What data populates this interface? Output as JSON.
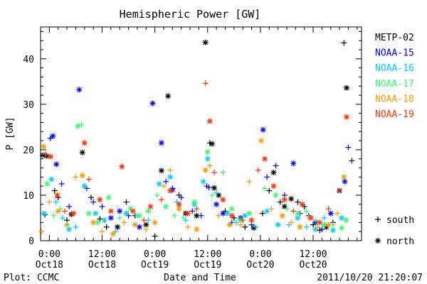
{
  "chart_data": {
    "type": "scatter",
    "title": "Hemispheric Power [GW]",
    "xlabel": "Date and Time",
    "ylabel": "P [GW]",
    "footer_left": "Plot: CCMC",
    "footer_right": "2011/10/20 21:20:07",
    "x_unit": "hours",
    "x_origin_label": "2011-10-18 00:00",
    "xlim": [
      -2.0,
      71.0
    ],
    "ylim": [
      0,
      47
    ],
    "y_ticks": [
      0,
      10,
      20,
      30,
      40
    ],
    "x_ticks": [
      {
        "x": 0,
        "label1": "0:00",
        "label2": "Oct18"
      },
      {
        "x": 12,
        "label1": "12:00",
        "label2": "Oct18"
      },
      {
        "x": 24,
        "label1": "0:00",
        "label2": "Oct19"
      },
      {
        "x": 36,
        "label1": "12:00",
        "label2": "Oct19"
      },
      {
        "x": 48,
        "label1": "0:00",
        "label2": "Oct20"
      },
      {
        "x": 60,
        "label1": "12:00",
        "label2": "Oct20"
      }
    ],
    "legend": {
      "position": "right",
      "markers": [
        {
          "symbol": "+",
          "label": "south"
        },
        {
          "symbol": "*",
          "label": "north"
        }
      ]
    },
    "series": [
      {
        "name": "METP-02",
        "color": "#000000",
        "points": [
          [
            -1.5,
            18.8,
            "n"
          ],
          [
            -0.6,
            18.6,
            "n"
          ],
          [
            1.2,
            11.0,
            "p"
          ],
          [
            2.0,
            9.5,
            "p"
          ],
          [
            4.0,
            4.5,
            "p"
          ],
          [
            5.0,
            5.8,
            "n"
          ],
          [
            7.5,
            19.4,
            "n"
          ],
          [
            9.5,
            9.5,
            "p"
          ],
          [
            11.5,
            4.8,
            "p"
          ],
          [
            13.0,
            3.0,
            "p"
          ],
          [
            15.5,
            3.0,
            "n"
          ],
          [
            17.5,
            8.5,
            "p"
          ],
          [
            19.5,
            5.5,
            "p"
          ],
          [
            22.0,
            3.5,
            "n"
          ],
          [
            24.0,
            1.0,
            "p"
          ],
          [
            25.5,
            15.4,
            "n"
          ],
          [
            27.0,
            31.8,
            "n"
          ],
          [
            28.0,
            11.5,
            "p"
          ],
          [
            29.5,
            10.0,
            "p"
          ],
          [
            31.0,
            6.0,
            "n"
          ],
          [
            33.5,
            5.5,
            "n"
          ],
          [
            35.5,
            43.6,
            "n"
          ],
          [
            36.5,
            21.5,
            "p"
          ],
          [
            37.0,
            21.3,
            "n"
          ],
          [
            37.5,
            11.6,
            "n"
          ],
          [
            38.5,
            10.0,
            "n"
          ],
          [
            40.0,
            6.5,
            "p"
          ],
          [
            42.0,
            5.0,
            "p"
          ],
          [
            44.5,
            3.0,
            "p"
          ],
          [
            46.5,
            2.8,
            "n"
          ],
          [
            48.5,
            6.0,
            "p"
          ],
          [
            50.0,
            11.0,
            "p"
          ],
          [
            51.0,
            15.0,
            "n"
          ],
          [
            52.5,
            8.5,
            "p"
          ],
          [
            53.5,
            7.5,
            "n"
          ],
          [
            55.0,
            9.2,
            "n"
          ],
          [
            56.5,
            8.5,
            "p"
          ],
          [
            58.0,
            7.5,
            "p"
          ],
          [
            60.0,
            3.5,
            "p"
          ],
          [
            61.5,
            2.3,
            "p"
          ],
          [
            63.0,
            3.0,
            "n"
          ],
          [
            64.5,
            4.0,
            "p"
          ],
          [
            66.0,
            11.0,
            "n"
          ],
          [
            67.0,
            43.5,
            "p"
          ],
          [
            67.6,
            33.6,
            "n"
          ]
        ]
      },
      {
        "name": "NOAA-15",
        "color": "#0000ff",
        "points": [
          [
            -1.0,
            5.7,
            "p"
          ],
          [
            0.2,
            22.5,
            "p"
          ],
          [
            0.8,
            23.0,
            "n"
          ],
          [
            1.6,
            16.8,
            "n"
          ],
          [
            2.8,
            12.5,
            "p"
          ],
          [
            4.5,
            7.5,
            "p"
          ],
          [
            6.8,
            33.2,
            "n"
          ],
          [
            8.5,
            11.5,
            "p"
          ],
          [
            10.0,
            8.5,
            "p"
          ],
          [
            12.0,
            7.5,
            "p"
          ],
          [
            14.0,
            5.0,
            "n"
          ],
          [
            16.0,
            6.5,
            "n"
          ],
          [
            18.0,
            5.5,
            "p"
          ],
          [
            20.5,
            3.0,
            "n"
          ],
          [
            23.5,
            30.2,
            "n"
          ],
          [
            25.5,
            21.5,
            "n"
          ],
          [
            26.5,
            13.0,
            "p"
          ],
          [
            28.0,
            11.2,
            "n"
          ],
          [
            30.0,
            9.5,
            "p"
          ],
          [
            32.5,
            6.5,
            "p"
          ],
          [
            34.5,
            5.5,
            "p"
          ],
          [
            35.8,
            12.0,
            "p"
          ],
          [
            36.3,
            11.7,
            "p"
          ],
          [
            38.0,
            8.0,
            "n"
          ],
          [
            39.5,
            6.0,
            "n"
          ],
          [
            41.5,
            4.0,
            "p"
          ],
          [
            43.5,
            5.0,
            "n"
          ],
          [
            46.0,
            3.5,
            "p"
          ],
          [
            48.6,
            24.4,
            "n"
          ],
          [
            49.5,
            14.0,
            "p"
          ],
          [
            51.5,
            16.5,
            "p"
          ],
          [
            53.5,
            10.0,
            "p"
          ],
          [
            55.5,
            17.0,
            "n"
          ],
          [
            57.0,
            6.0,
            "p"
          ],
          [
            59.0,
            5.5,
            "p"
          ],
          [
            60.5,
            4.0,
            "n"
          ],
          [
            62.0,
            2.5,
            "p"
          ],
          [
            64.0,
            6.0,
            "n"
          ],
          [
            67.2,
            13.0,
            "n"
          ],
          [
            68.0,
            20.5,
            "p"
          ],
          [
            68.8,
            17.6,
            "p"
          ]
        ]
      },
      {
        "name": "NOAA-16",
        "color": "#00ccff",
        "points": [
          [
            -1.2,
            6.0,
            "n"
          ],
          [
            0.5,
            13.5,
            "n"
          ],
          [
            1.5,
            8.5,
            "p"
          ],
          [
            3.0,
            5.0,
            "p"
          ],
          [
            4.5,
            2.5,
            "n"
          ],
          [
            6.0,
            3.0,
            "p"
          ],
          [
            8.0,
            12.0,
            "n"
          ],
          [
            10.5,
            6.0,
            "n"
          ],
          [
            12.5,
            4.5,
            "n"
          ],
          [
            15.0,
            2.0,
            "p"
          ],
          [
            17.5,
            6.0,
            "n"
          ],
          [
            20.0,
            5.5,
            "p"
          ],
          [
            22.5,
            4.5,
            "p"
          ],
          [
            25.0,
            12.5,
            "n"
          ],
          [
            27.5,
            14.0,
            "n"
          ],
          [
            29.0,
            8.5,
            "p"
          ],
          [
            31.0,
            4.5,
            "p"
          ],
          [
            33.0,
            8.0,
            "n"
          ],
          [
            35.0,
            13.0,
            "n"
          ],
          [
            36.0,
            18.0,
            "n"
          ],
          [
            38.0,
            10.5,
            "p"
          ],
          [
            40.5,
            6.0,
            "n"
          ],
          [
            42.5,
            4.0,
            "p"
          ],
          [
            44.5,
            5.5,
            "n"
          ],
          [
            47.0,
            3.0,
            "p"
          ],
          [
            49.5,
            6.5,
            "n"
          ],
          [
            52.0,
            3.5,
            "n"
          ],
          [
            54.5,
            3.5,
            "p"
          ],
          [
            56.5,
            5.0,
            "n"
          ],
          [
            58.5,
            3.0,
            "p"
          ],
          [
            60.5,
            2.5,
            "n"
          ],
          [
            62.5,
            5.0,
            "p"
          ],
          [
            64.5,
            2.3,
            "n"
          ],
          [
            66.5,
            5.0,
            "n"
          ]
        ]
      },
      {
        "name": "NOAA-17",
        "color": "#33ff66",
        "points": [
          [
            -0.5,
            12.5,
            "n"
          ],
          [
            1.0,
            5.5,
            "p"
          ],
          [
            2.5,
            7.0,
            "p"
          ],
          [
            4.0,
            3.5,
            "n"
          ],
          [
            6.5,
            25.2,
            "n"
          ],
          [
            7.3,
            25.5,
            "p"
          ],
          [
            9.0,
            6.0,
            "n"
          ],
          [
            11.0,
            4.0,
            "n"
          ],
          [
            13.5,
            9.5,
            "n"
          ],
          [
            16.0,
            5.0,
            "p"
          ],
          [
            18.5,
            7.0,
            "n"
          ],
          [
            20.5,
            5.5,
            "n"
          ],
          [
            22.5,
            6.5,
            "n"
          ],
          [
            24.5,
            10.0,
            "p"
          ],
          [
            26.5,
            7.5,
            "n"
          ],
          [
            28.5,
            5.5,
            "p"
          ],
          [
            30.5,
            5.0,
            "p"
          ],
          [
            33.0,
            8.5,
            "n"
          ],
          [
            36.0,
            19.5,
            "n"
          ],
          [
            37.0,
            10.0,
            "p"
          ],
          [
            39.5,
            15.0,
            "p"
          ],
          [
            41.5,
            7.0,
            "n"
          ],
          [
            43.5,
            4.5,
            "n"
          ],
          [
            45.5,
            6.0,
            "n"
          ],
          [
            49.0,
            11.5,
            "p"
          ],
          [
            51.5,
            10.0,
            "n"
          ],
          [
            54.0,
            7.0,
            "p"
          ],
          [
            56.5,
            6.0,
            "n"
          ],
          [
            58.5,
            6.5,
            "p"
          ],
          [
            60.5,
            4.5,
            "p"
          ],
          [
            62.5,
            3.5,
            "n"
          ],
          [
            64.5,
            3.5,
            "p"
          ],
          [
            66.5,
            2.8,
            "n"
          ],
          [
            67.5,
            4.5,
            "n"
          ]
        ]
      },
      {
        "name": "NOAA-18",
        "color": "#ff9900",
        "points": [
          [
            -1.8,
            2.0,
            "p"
          ],
          [
            -1.3,
            20.7,
            "n"
          ],
          [
            0.0,
            8.5,
            "p"
          ],
          [
            2.0,
            6.5,
            "n"
          ],
          [
            4.0,
            3.5,
            "p"
          ],
          [
            6.0,
            14.0,
            "p"
          ],
          [
            7.5,
            14.3,
            "n"
          ],
          [
            10.0,
            4.0,
            "n"
          ],
          [
            12.0,
            2.0,
            "p"
          ],
          [
            14.5,
            1.5,
            "n"
          ],
          [
            17.0,
            4.0,
            "p"
          ],
          [
            19.5,
            3.5,
            "n"
          ],
          [
            22.0,
            2.5,
            "p"
          ],
          [
            24.0,
            4.0,
            "n"
          ],
          [
            26.0,
            12.0,
            "p"
          ],
          [
            27.5,
            15.5,
            "p"
          ],
          [
            29.5,
            7.0,
            "n"
          ],
          [
            31.5,
            3.0,
            "p"
          ],
          [
            33.5,
            2.5,
            "n"
          ],
          [
            35.5,
            15.5,
            "n"
          ],
          [
            36.5,
            16.5,
            "p"
          ],
          [
            38.5,
            5.5,
            "p"
          ],
          [
            41.0,
            3.5,
            "n"
          ],
          [
            43.5,
            3.5,
            "p"
          ],
          [
            45.5,
            13.0,
            "p"
          ],
          [
            48.2,
            22.0,
            "n"
          ],
          [
            50.5,
            7.0,
            "p"
          ],
          [
            53.0,
            5.5,
            "n"
          ],
          [
            55.0,
            4.0,
            "p"
          ],
          [
            57.0,
            3.0,
            "n"
          ],
          [
            59.0,
            5.0,
            "p"
          ],
          [
            61.0,
            3.0,
            "p"
          ],
          [
            63.5,
            3.5,
            "n"
          ],
          [
            65.5,
            6.0,
            "p"
          ],
          [
            67.0,
            14.0,
            "n"
          ]
        ]
      },
      {
        "name": "NOAA-19",
        "color": "#ff3300",
        "points": [
          [
            -0.8,
            19.0,
            "p"
          ],
          [
            0.3,
            18.5,
            "n"
          ],
          [
            1.8,
            10.0,
            "n"
          ],
          [
            3.5,
            6.5,
            "p"
          ],
          [
            5.5,
            6.0,
            "n"
          ],
          [
            8.0,
            21.5,
            "n"
          ],
          [
            9.0,
            13.5,
            "p"
          ],
          [
            11.5,
            9.0,
            "n"
          ],
          [
            14.0,
            6.5,
            "n"
          ],
          [
            16.5,
            16.3,
            "n"
          ],
          [
            19.0,
            6.5,
            "n"
          ],
          [
            21.5,
            4.5,
            "p"
          ],
          [
            23.0,
            7.5,
            "n"
          ],
          [
            25.5,
            9.0,
            "p"
          ],
          [
            27.5,
            11.0,
            "n"
          ],
          [
            29.5,
            8.0,
            "n"
          ],
          [
            31.5,
            6.0,
            "n"
          ],
          [
            33.5,
            7.0,
            "p"
          ],
          [
            35.5,
            34.6,
            "p"
          ],
          [
            36.5,
            26.3,
            "n"
          ],
          [
            37.5,
            15.0,
            "p"
          ],
          [
            39.5,
            9.0,
            "n"
          ],
          [
            41.5,
            5.5,
            "n"
          ],
          [
            44.0,
            4.5,
            "p"
          ],
          [
            46.0,
            4.5,
            "n"
          ],
          [
            47.5,
            15.5,
            "p"
          ],
          [
            49.0,
            18.0,
            "n"
          ],
          [
            51.0,
            12.0,
            "n"
          ],
          [
            53.5,
            9.0,
            "n"
          ],
          [
            55.5,
            6.5,
            "p"
          ],
          [
            57.5,
            8.0,
            "n"
          ],
          [
            59.5,
            5.0,
            "n"
          ],
          [
            61.5,
            4.0,
            "n"
          ],
          [
            63.5,
            7.0,
            "p"
          ],
          [
            66.0,
            11.0,
            "p"
          ],
          [
            67.6,
            27.2,
            "n"
          ]
        ]
      }
    ]
  }
}
